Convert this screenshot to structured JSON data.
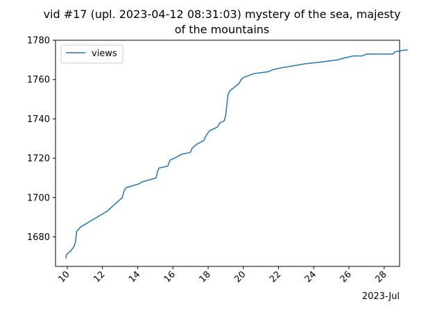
{
  "chart_data": {
    "type": "line",
    "title_line1": "vid #17 (upl. 2023-04-12 08:31:03) mystery of the sea, majesty",
    "title_line2": "of the mountains",
    "xlabel": "",
    "ylabel": "",
    "x_offset_label": "2023-Jul",
    "legend": {
      "placement": "upper-left",
      "entries": [
        "views"
      ]
    },
    "grid": false,
    "color": "#1f77b4",
    "xlim": [
      "2023-07-09T08:00",
      "2023-07-28T21:00"
    ],
    "ylim": [
      1665,
      1780
    ],
    "x_ticks": [
      "10",
      "12",
      "14",
      "16",
      "18",
      "20",
      "22",
      "24",
      "26",
      "28"
    ],
    "y_ticks": [
      "1680",
      "1700",
      "1720",
      "1740",
      "1760",
      "1780"
    ],
    "series": [
      {
        "name": "views",
        "points": [
          [
            "2023-07-09T22:00",
            1669
          ],
          [
            "2023-07-09T23:00",
            1671
          ],
          [
            "2023-07-10T02:00",
            1672
          ],
          [
            "2023-07-10T05:00",
            1673
          ],
          [
            "2023-07-10T07:00",
            1674
          ],
          [
            "2023-07-10T09:00",
            1675
          ],
          [
            "2023-07-10T11:00",
            1677
          ],
          [
            "2023-07-10T12:00",
            1680
          ],
          [
            "2023-07-10T13:00",
            1683
          ],
          [
            "2023-07-10T16:00",
            1684
          ],
          [
            "2023-07-10T18:00",
            1685
          ],
          [
            "2023-07-12T06:00",
            1693
          ],
          [
            "2023-07-13T03:00",
            1700
          ],
          [
            "2023-07-13T05:00",
            1703
          ],
          [
            "2023-07-13T08:00",
            1705
          ],
          [
            "2023-07-13T17:00",
            1706
          ],
          [
            "2023-07-14T02:00",
            1707
          ],
          [
            "2023-07-14T06:00",
            1708
          ],
          [
            "2023-07-14T16:00",
            1709
          ],
          [
            "2023-07-15T01:00",
            1710
          ],
          [
            "2023-07-15T03:00",
            1713
          ],
          [
            "2023-07-15T05:00",
            1715
          ],
          [
            "2023-07-15T17:00",
            1716
          ],
          [
            "2023-07-15T20:00",
            1719
          ],
          [
            "2023-07-16T02:00",
            1720
          ],
          [
            "2023-07-16T12:00",
            1722
          ],
          [
            "2023-07-17T00:00",
            1723
          ],
          [
            "2023-07-17T02:00",
            1725
          ],
          [
            "2023-07-17T08:00",
            1727
          ],
          [
            "2023-07-17T18:00",
            1729
          ],
          [
            "2023-07-17T22:00",
            1732
          ],
          [
            "2023-07-18T02:00",
            1734
          ],
          [
            "2023-07-18T08:00",
            1735
          ],
          [
            "2023-07-18T13:00",
            1736
          ],
          [
            "2023-07-18T16:00",
            1738
          ],
          [
            "2023-07-18T22:00",
            1739
          ],
          [
            "2023-07-19T00:00",
            1742
          ],
          [
            "2023-07-19T03:00",
            1752
          ],
          [
            "2023-07-19T05:00",
            1754
          ],
          [
            "2023-07-19T18:00",
            1758
          ],
          [
            "2023-07-19T21:00",
            1760
          ],
          [
            "2023-07-20T00:00",
            1761
          ],
          [
            "2023-07-20T14:00",
            1763
          ],
          [
            "2023-07-21T10:00",
            1764
          ],
          [
            "2023-07-21T16:00",
            1765
          ],
          [
            "2023-07-22T04:00",
            1766
          ],
          [
            "2023-07-22T20:00",
            1767
          ],
          [
            "2023-07-23T12:00",
            1768
          ],
          [
            "2023-07-24T12:00",
            1769
          ],
          [
            "2023-07-25T08:00",
            1770
          ],
          [
            "2023-07-25T18:00",
            1771
          ],
          [
            "2023-07-26T06:00",
            1772
          ],
          [
            "2023-07-26T18:00",
            1772
          ],
          [
            "2023-07-27T00:00",
            1773
          ],
          [
            "2023-07-28T12:00",
            1773
          ],
          [
            "2023-07-28T14:00",
            1774
          ],
          [
            "2023-07-29T04:00",
            1775
          ],
          [
            "2023-07-29T08:00",
            1775
          ]
        ]
      }
    ]
  }
}
